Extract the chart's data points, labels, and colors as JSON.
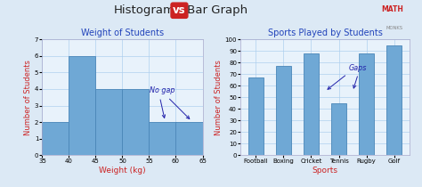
{
  "bg_color": "#dce9f5",
  "bar_color": "#6fa8d5",
  "bar_edgecolor": "#4a86b8",
  "hist_title": "Weight of Students",
  "hist_xlabel": "Weight (kg)",
  "hist_ylabel": "Number of Students",
  "hist_bins": [
    35,
    40,
    45,
    50,
    55,
    60,
    65
  ],
  "hist_values": [
    2,
    6,
    4,
    4,
    2,
    2
  ],
  "hist_ylim": [
    0,
    7
  ],
  "hist_yticks": [
    0,
    1,
    2,
    3,
    4,
    5,
    6,
    7
  ],
  "hist_xticks": [
    35,
    40,
    45,
    50,
    55,
    60,
    65
  ],
  "bar_title": "Sports Played by Students",
  "bar_xlabel": "Sports",
  "bar_ylabel": "Number of Students",
  "bar_categories": [
    "Football",
    "Boxing",
    "Cricket",
    "Tennis",
    "Rugby",
    "Golf"
  ],
  "bar_values": [
    67,
    77,
    88,
    45,
    88,
    95
  ],
  "bar_ylim": [
    0,
    100
  ],
  "bar_yticks": [
    0,
    10,
    20,
    30,
    40,
    50,
    60,
    70,
    80,
    90,
    100
  ],
  "annotation_nogap_text": "No gap",
  "annotation_gap_text": "Gaps",
  "label_color_red": "#cc2222",
  "label_color_blue": "#2222aa",
  "title_vs_color": "#cc2222",
  "subtitle_color": "#2244bb",
  "grid_color": "#aaccee",
  "axis_face_color": "#e8f2fb",
  "title_histogram": "Histogram",
  "title_bar": " Bar Graph",
  "math_text": "MATH",
  "math_sub": "MONKS"
}
